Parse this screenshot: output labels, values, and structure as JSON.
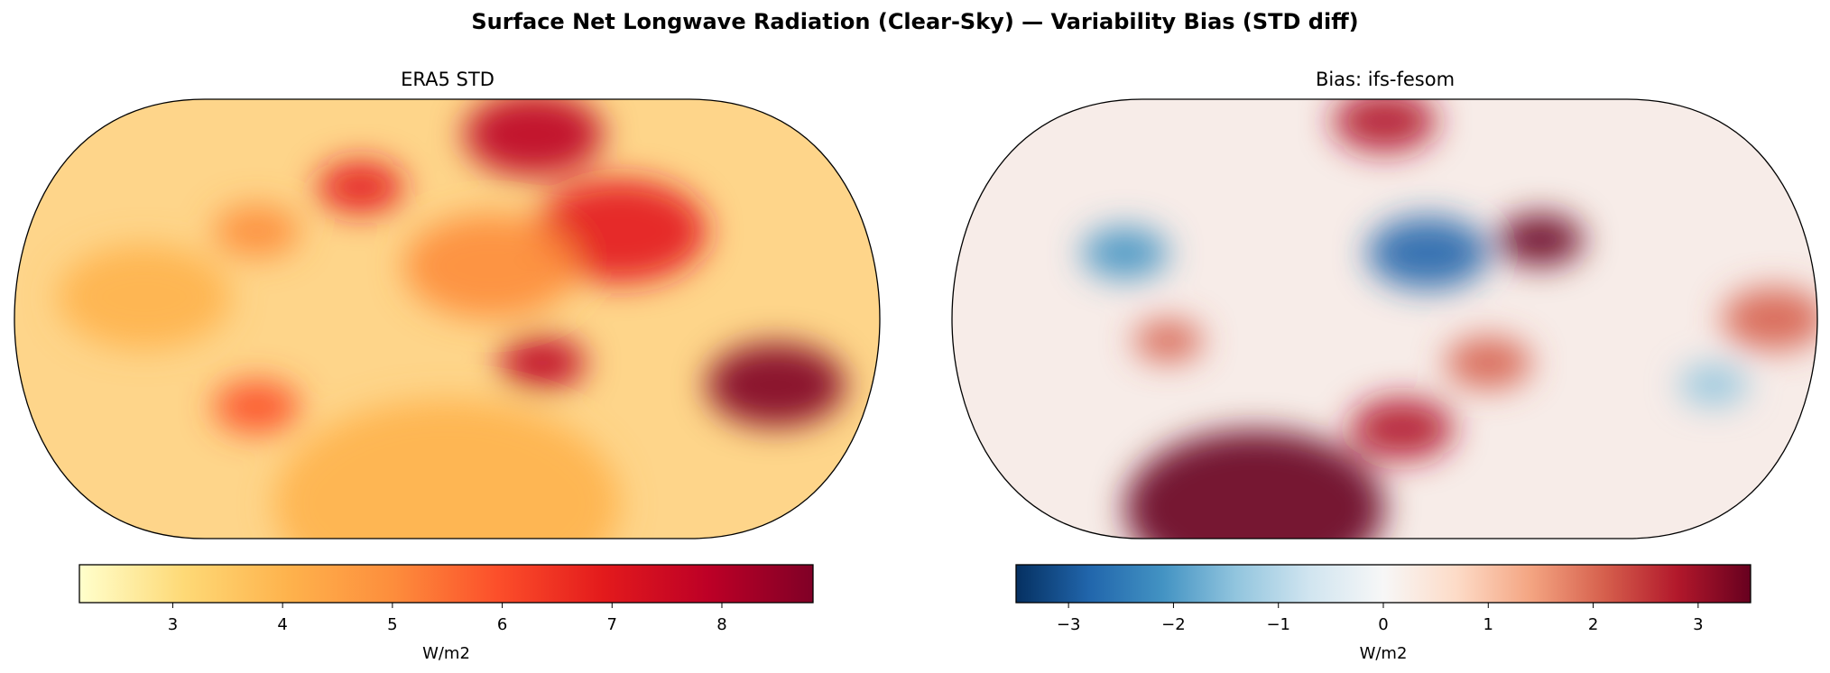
{
  "title": "Surface Net Longwave Radiation (Clear-Sky) — Variability Bias (STD diff)",
  "chart_data": [
    {
      "type": "heatmap",
      "title": "ERA5 STD",
      "projection": "Robinson",
      "colormap": "YlOrRd",
      "colorbar": {
        "label": "W/m2",
        "range": [
          2.15,
          8.83
        ],
        "ticks": [
          3,
          4,
          5,
          6,
          7,
          8
        ],
        "tick_labels": [
          "3",
          "4",
          "5",
          "6",
          "7",
          "8"
        ],
        "colors": [
          "#ffffcc",
          "#fed976",
          "#feb24c",
          "#fd8d3c",
          "#fc4e2a",
          "#e31a1c",
          "#bd0026",
          "#800026"
        ]
      }
    },
    {
      "type": "heatmap",
      "title": "Bias: ifs-fesom",
      "projection": "Robinson",
      "colormap": "RdBu_r",
      "colorbar": {
        "label": "W/m2",
        "range": [
          -3.5,
          3.5
        ],
        "ticks": [
          -3,
          -2,
          -1,
          0,
          1,
          2,
          3
        ],
        "tick_labels": [
          "−3",
          "−2",
          "−1",
          "0",
          "1",
          "2",
          "3"
        ],
        "colors": [
          "#053061",
          "#2166ac",
          "#4393c3",
          "#92c5de",
          "#d1e5f0",
          "#f7f7f7",
          "#fddbc7",
          "#f4a582",
          "#d6604d",
          "#b2182b",
          "#67001f"
        ]
      }
    }
  ]
}
